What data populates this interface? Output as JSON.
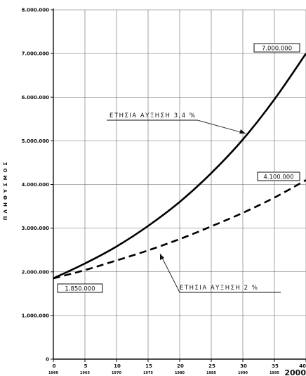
{
  "chart_data": {
    "type": "line",
    "ylabel": "ΠΛΗΘΥΣΜΟΣ",
    "xlim": [
      0,
      40
    ],
    "ylim": [
      0,
      8000000
    ],
    "grid": true,
    "x_ticks": [
      {
        "value": 0,
        "label": "0",
        "year": "1960"
      },
      {
        "value": 5,
        "label": "5",
        "year": "1965"
      },
      {
        "value": 10,
        "label": "10",
        "year": "1970"
      },
      {
        "value": 15,
        "label": "15",
        "year": "1975"
      },
      {
        "value": 20,
        "label": "20",
        "year": "1980"
      },
      {
        "value": 25,
        "label": "25",
        "year": "1985"
      },
      {
        "value": 30,
        "label": "30",
        "year": "1990"
      },
      {
        "value": 35,
        "label": "35",
        "year": "1995"
      },
      {
        "value": 40,
        "label": "40",
        "year": "2000"
      }
    ],
    "y_ticks": [
      {
        "value": 0,
        "label": "0"
      },
      {
        "value": 1000000,
        "label": "1.000.000"
      },
      {
        "value": 2000000,
        "label": "2.000.000"
      },
      {
        "value": 3000000,
        "label": "3.000.000"
      },
      {
        "value": 4000000,
        "label": "4.000.000"
      },
      {
        "value": 5000000,
        "label": "5.000.000"
      },
      {
        "value": 6000000,
        "label": "6.000.000"
      },
      {
        "value": 7000000,
        "label": "7.000.000"
      },
      {
        "value": 8000000,
        "label": "8.000.000"
      }
    ],
    "series": [
      {
        "style": "solid",
        "x": [
          0,
          5,
          10,
          15,
          20,
          25,
          30,
          35,
          40
        ],
        "values": [
          1850000,
          2190000,
          2580000,
          3050000,
          3600000,
          4260000,
          5030000,
          5950000,
          7000000
        ]
      },
      {
        "style": "dashed",
        "x": [
          0,
          5,
          10,
          15,
          20,
          25,
          30,
          35,
          40
        ],
        "values": [
          1850000,
          2040000,
          2260000,
          2490000,
          2750000,
          3040000,
          3350000,
          3700000,
          4100000
        ]
      }
    ],
    "annotations": {
      "start_label": "1.850.000",
      "end_label_high": "7.000.000",
      "end_label_low": "4.100.000",
      "growth_high": "ΕΤΗΣΙΑ ΑΥΞΗΣΗ 3,4 %",
      "growth_low": "ΕΤΗΣΙΑ ΑΥΞΗΣΗ 2 %"
    }
  }
}
